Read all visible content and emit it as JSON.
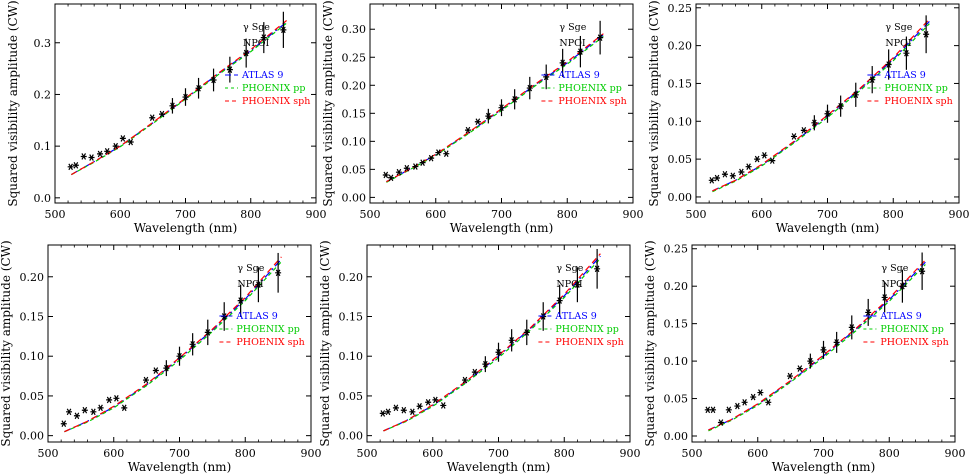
{
  "colors": {
    "data": "#000000",
    "atlas9": "#0000ff",
    "phoenix_pp": "#00cc00",
    "phoenix_sph": "#ff0000"
  },
  "chart_data": [
    {
      "type": "scatter",
      "xlabel": "Wavelength (nm)",
      "ylabel": "Squared visibility amplitude (CW)",
      "xlim": [
        500,
        900
      ],
      "ylim": [
        -0.01,
        0.375
      ],
      "xticks": [
        500,
        600,
        700,
        800,
        900
      ],
      "yticks": [
        0.0,
        0.1,
        0.2,
        0.3
      ],
      "ytick_labels": [
        "0.0",
        "0.1",
        "0.2",
        "0.3"
      ],
      "legend": {
        "star": "γ Sge",
        "instrument": "NPOI",
        "atlas": "ATLAS 9",
        "phoenix_pp": "PHOENIX pp",
        "phoenix_sph": "PHOENIX sph",
        "placement": "right"
      },
      "observed": {
        "x": [
          524,
          532,
          544,
          556,
          569,
          580,
          593,
          604,
          616,
          649,
          664,
          680,
          700,
          720,
          743,
          768,
          793,
          820,
          850
        ],
        "y": [
          0.06,
          0.063,
          0.08,
          0.078,
          0.085,
          0.09,
          0.1,
          0.115,
          0.108,
          0.155,
          0.162,
          0.178,
          0.195,
          0.212,
          0.228,
          0.248,
          0.28,
          0.31,
          0.325
        ],
        "err": [
          0,
          0,
          0,
          0,
          0,
          0,
          0,
          0,
          0,
          0,
          0,
          0.015,
          0.017,
          0.02,
          0.022,
          0.025,
          0.028,
          0.03,
          0.035
        ]
      },
      "models": [
        {
          "name": "ATLAS 9",
          "x": [
            525,
            560,
            600,
            650,
            700,
            750,
            800,
            855
          ],
          "y": [
            0.045,
            0.07,
            0.1,
            0.145,
            0.192,
            0.24,
            0.285,
            0.34
          ]
        },
        {
          "name": "PHOENIX pp",
          "x": [
            525,
            560,
            600,
            650,
            700,
            750,
            800,
            855
          ],
          "y": [
            0.045,
            0.069,
            0.099,
            0.144,
            0.191,
            0.238,
            0.283,
            0.338
          ]
        },
        {
          "name": "PHOENIX sph",
          "x": [
            525,
            560,
            600,
            650,
            700,
            750,
            800,
            855
          ],
          "y": [
            0.045,
            0.07,
            0.1,
            0.146,
            0.193,
            0.241,
            0.287,
            0.343
          ]
        }
      ]
    },
    {
      "type": "scatter",
      "xlabel": "Wavelength (nm)",
      "ylabel": "Squared visibility amplitude (CW)",
      "xlim": [
        500,
        900
      ],
      "ylim": [
        -0.01,
        0.345
      ],
      "xticks": [
        500,
        600,
        700,
        800,
        900
      ],
      "yticks": [
        0.0,
        0.05,
        0.1,
        0.15,
        0.2,
        0.25,
        0.3
      ],
      "ytick_labels": [
        "0.00",
        "0.05",
        "0.10",
        "0.15",
        "0.20",
        "0.25",
        "0.30"
      ],
      "legend": {
        "star": "γ Sge",
        "instrument": "NPOI",
        "atlas": "ATLAS 9",
        "phoenix_pp": "PHOENIX pp",
        "phoenix_sph": "PHOENIX sph",
        "placement": "right"
      },
      "observed": {
        "x": [
          524,
          532,
          544,
          556,
          569,
          580,
          593,
          604,
          616,
          649,
          664,
          680,
          700,
          720,
          743,
          768,
          793,
          820,
          850
        ],
        "y": [
          0.04,
          0.035,
          0.045,
          0.052,
          0.055,
          0.062,
          0.07,
          0.08,
          0.078,
          0.12,
          0.135,
          0.145,
          0.16,
          0.175,
          0.195,
          0.215,
          0.24,
          0.26,
          0.285
        ],
        "err": [
          0,
          0,
          0,
          0,
          0,
          0,
          0,
          0,
          0,
          0,
          0,
          0.013,
          0.015,
          0.018,
          0.02,
          0.022,
          0.025,
          0.028,
          0.03
        ]
      },
      "models": [
        {
          "name": "ATLAS 9",
          "x": [
            525,
            560,
            600,
            650,
            700,
            750,
            800,
            855
          ],
          "y": [
            0.028,
            0.05,
            0.076,
            0.115,
            0.157,
            0.2,
            0.24,
            0.29
          ]
        },
        {
          "name": "PHOENIX pp",
          "x": [
            525,
            560,
            600,
            650,
            700,
            750,
            800,
            855
          ],
          "y": [
            0.027,
            0.049,
            0.075,
            0.114,
            0.155,
            0.198,
            0.238,
            0.287
          ]
        },
        {
          "name": "PHOENIX sph",
          "x": [
            525,
            560,
            600,
            650,
            700,
            750,
            800,
            855
          ],
          "y": [
            0.028,
            0.05,
            0.077,
            0.116,
            0.158,
            0.201,
            0.242,
            0.292
          ]
        }
      ]
    },
    {
      "type": "scatter",
      "xlabel": "Wavelength (nm)",
      "ylabel": "Squared visibility amplitude (CW)",
      "xlim": [
        500,
        900
      ],
      "ylim": [
        -0.008,
        0.255
      ],
      "xticks": [
        500,
        600,
        700,
        800,
        900
      ],
      "yticks": [
        0.0,
        0.05,
        0.1,
        0.15,
        0.2,
        0.25
      ],
      "ytick_labels": [
        "0.00",
        "0.05",
        "0.10",
        "0.15",
        "0.20",
        "0.25"
      ],
      "legend": {
        "star": "γ Sge",
        "instrument": "NPOI",
        "atlas": "ATLAS 9",
        "phoenix_pp": "PHOENIX pp",
        "phoenix_sph": "PHOENIX sph",
        "placement": "right"
      },
      "observed": {
        "x": [
          524,
          532,
          544,
          556,
          569,
          580,
          593,
          604,
          616,
          649,
          664,
          680,
          700,
          720,
          743,
          768,
          793,
          820,
          850
        ],
        "y": [
          0.022,
          0.025,
          0.03,
          0.028,
          0.033,
          0.04,
          0.05,
          0.055,
          0.048,
          0.08,
          0.088,
          0.098,
          0.11,
          0.12,
          0.135,
          0.155,
          0.175,
          0.19,
          0.215
        ],
        "err": [
          0,
          0,
          0,
          0,
          0,
          0,
          0,
          0,
          0,
          0,
          0,
          0.01,
          0.012,
          0.014,
          0.016,
          0.018,
          0.02,
          0.022,
          0.025
        ]
      },
      "models": [
        {
          "name": "ATLAS 9",
          "x": [
            525,
            560,
            600,
            650,
            700,
            750,
            800,
            855
          ],
          "y": [
            0.008,
            0.022,
            0.042,
            0.073,
            0.107,
            0.143,
            0.182,
            0.232
          ]
        },
        {
          "name": "PHOENIX pp",
          "x": [
            525,
            560,
            600,
            650,
            700,
            750,
            800,
            855
          ],
          "y": [
            0.007,
            0.021,
            0.041,
            0.072,
            0.105,
            0.141,
            0.18,
            0.229
          ]
        },
        {
          "name": "PHOENIX sph",
          "x": [
            525,
            560,
            600,
            650,
            700,
            750,
            800,
            855
          ],
          "y": [
            0.008,
            0.022,
            0.043,
            0.074,
            0.108,
            0.144,
            0.184,
            0.235
          ]
        }
      ]
    },
    {
      "type": "scatter",
      "xlabel": "Wavelength (nm)",
      "ylabel": "Squared visibility amplitude (CW)",
      "xlim": [
        500,
        900
      ],
      "ylim": [
        -0.008,
        0.24
      ],
      "xticks": [
        500,
        600,
        700,
        800,
        900
      ],
      "yticks": [
        0.0,
        0.05,
        0.1,
        0.15,
        0.2
      ],
      "ytick_labels": [
        "0.00",
        "0.05",
        "0.10",
        "0.15",
        "0.20"
      ],
      "legend": {
        "star": "γ Sge",
        "instrument": "NPOI",
        "atlas": "ATLAS 9",
        "phoenix_pp": "PHOENIX pp",
        "phoenix_sph": "PHOENIX sph",
        "placement": "right"
      },
      "observed": {
        "x": [
          524,
          532,
          544,
          556,
          569,
          580,
          593,
          604,
          616,
          649,
          664,
          680,
          700,
          720,
          743,
          768,
          793,
          820,
          850
        ],
        "y": [
          0.015,
          0.03,
          0.025,
          0.032,
          0.03,
          0.035,
          0.045,
          0.047,
          0.035,
          0.07,
          0.082,
          0.085,
          0.1,
          0.115,
          0.13,
          0.15,
          0.17,
          0.19,
          0.205
        ],
        "err": [
          0,
          0,
          0,
          0,
          0,
          0,
          0,
          0,
          0,
          0,
          0,
          0.01,
          0.012,
          0.014,
          0.016,
          0.018,
          0.02,
          0.022,
          0.025
        ]
      },
      "models": [
        {
          "name": "ATLAS 9",
          "x": [
            525,
            560,
            600,
            650,
            700,
            750,
            800,
            855
          ],
          "y": [
            0.005,
            0.018,
            0.036,
            0.064,
            0.097,
            0.133,
            0.172,
            0.222
          ]
        },
        {
          "name": "PHOENIX pp",
          "x": [
            525,
            560,
            600,
            650,
            700,
            750,
            800,
            855
          ],
          "y": [
            0.005,
            0.017,
            0.035,
            0.063,
            0.095,
            0.131,
            0.17,
            0.219
          ]
        },
        {
          "name": "PHOENIX sph",
          "x": [
            525,
            560,
            600,
            650,
            700,
            750,
            800,
            855
          ],
          "y": [
            0.005,
            0.018,
            0.037,
            0.065,
            0.098,
            0.134,
            0.174,
            0.225
          ]
        }
      ]
    },
    {
      "type": "scatter",
      "xlabel": "Wavelength (nm)",
      "ylabel": "Squared visibility amplitude (CW)",
      "xlim": [
        500,
        900
      ],
      "ylim": [
        -0.008,
        0.24
      ],
      "xticks": [
        500,
        600,
        700,
        800,
        900
      ],
      "yticks": [
        0.0,
        0.05,
        0.1,
        0.15,
        0.2
      ],
      "ytick_labels": [
        "0.00",
        "0.05",
        "0.10",
        "0.15",
        "0.20"
      ],
      "legend": {
        "star": "γ Sge",
        "instrument": "NPOI",
        "atlas": "ATLAS 9",
        "phoenix_pp": "PHOENIX pp",
        "phoenix_sph": "PHOENIX sph",
        "placement": "right"
      },
      "observed": {
        "x": [
          524,
          532,
          544,
          556,
          569,
          580,
          593,
          604,
          616,
          649,
          664,
          680,
          700,
          720,
          743,
          768,
          793,
          820,
          850
        ],
        "y": [
          0.028,
          0.03,
          0.035,
          0.032,
          0.03,
          0.037,
          0.042,
          0.045,
          0.038,
          0.07,
          0.08,
          0.09,
          0.105,
          0.12,
          0.13,
          0.15,
          0.17,
          0.19,
          0.21
        ],
        "err": [
          0,
          0,
          0,
          0,
          0,
          0,
          0,
          0,
          0,
          0,
          0,
          0.01,
          0.012,
          0.014,
          0.016,
          0.018,
          0.02,
          0.022,
          0.025
        ]
      },
      "models": [
        {
          "name": "ATLAS 9",
          "x": [
            525,
            560,
            600,
            650,
            700,
            750,
            800,
            855
          ],
          "y": [
            0.006,
            0.019,
            0.038,
            0.067,
            0.1,
            0.136,
            0.176,
            0.226
          ]
        },
        {
          "name": "PHOENIX pp",
          "x": [
            525,
            560,
            600,
            650,
            700,
            750,
            800,
            855
          ],
          "y": [
            0.006,
            0.018,
            0.037,
            0.066,
            0.098,
            0.134,
            0.174,
            0.223
          ]
        },
        {
          "name": "PHOENIX sph",
          "x": [
            525,
            560,
            600,
            650,
            700,
            750,
            800,
            855
          ],
          "y": [
            0.006,
            0.019,
            0.039,
            0.068,
            0.101,
            0.137,
            0.178,
            0.229
          ]
        }
      ]
    },
    {
      "type": "scatter",
      "xlabel": "Wavelength (nm)",
      "ylabel": "Squared visibility amplitude (CW)",
      "xlim": [
        500,
        900
      ],
      "ylim": [
        -0.008,
        0.255
      ],
      "xticks": [
        500,
        600,
        700,
        800,
        900
      ],
      "yticks": [
        0.0,
        0.05,
        0.1,
        0.15,
        0.2,
        0.25
      ],
      "ytick_labels": [
        "0.00",
        "0.05",
        "0.10",
        "0.15",
        "0.20",
        "0.25"
      ],
      "legend": {
        "star": "γ Sge",
        "instrument": "NPOI",
        "atlas": "ATLAS 9",
        "phoenix_pp": "PHOENIX pp",
        "phoenix_sph": "PHOENIX sph",
        "placement": "right"
      },
      "observed": {
        "x": [
          524,
          532,
          544,
          556,
          569,
          580,
          593,
          604,
          616,
          649,
          664,
          680,
          700,
          720,
          743,
          768,
          793,
          820,
          850
        ],
        "y": [
          0.035,
          0.035,
          0.018,
          0.035,
          0.04,
          0.045,
          0.052,
          0.058,
          0.045,
          0.08,
          0.09,
          0.1,
          0.115,
          0.125,
          0.145,
          0.165,
          0.185,
          0.2,
          0.22
        ],
        "err": [
          0,
          0,
          0,
          0,
          0,
          0,
          0,
          0,
          0,
          0,
          0,
          0.01,
          0.012,
          0.014,
          0.016,
          0.018,
          0.02,
          0.022,
          0.025
        ]
      },
      "models": [
        {
          "name": "ATLAS 9",
          "x": [
            525,
            560,
            600,
            650,
            700,
            750,
            800,
            855
          ],
          "y": [
            0.008,
            0.022,
            0.042,
            0.073,
            0.107,
            0.143,
            0.182,
            0.232
          ]
        },
        {
          "name": "PHOENIX pp",
          "x": [
            525,
            560,
            600,
            650,
            700,
            750,
            800,
            855
          ],
          "y": [
            0.007,
            0.021,
            0.041,
            0.072,
            0.105,
            0.141,
            0.18,
            0.229
          ]
        },
        {
          "name": "PHOENIX sph",
          "x": [
            525,
            560,
            600,
            650,
            700,
            750,
            800,
            855
          ],
          "y": [
            0.008,
            0.022,
            0.043,
            0.074,
            0.108,
            0.144,
            0.184,
            0.235
          ]
        }
      ]
    }
  ]
}
